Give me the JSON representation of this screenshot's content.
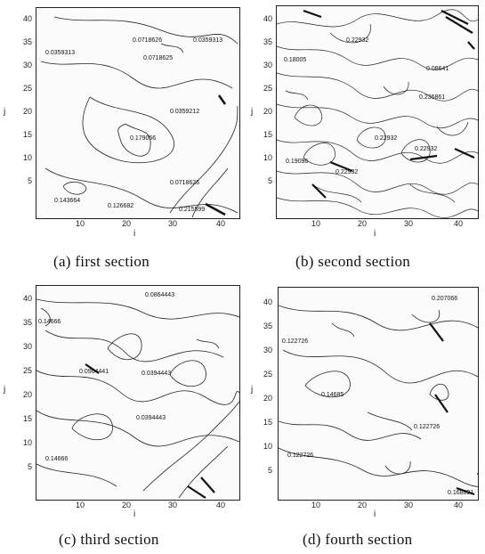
{
  "panels": [
    {
      "id": "a",
      "caption": "(a) first section",
      "x_label": "i",
      "y_label": "j",
      "x_ticks": [
        "10",
        "20",
        "30",
        "40"
      ],
      "y_ticks": [
        "40",
        "35",
        "30",
        "25",
        "20",
        "15",
        "10",
        "5"
      ],
      "contour_labels": [
        "0.0718626",
        "0.0359313",
        "0.0718625",
        "0.0359313",
        "0.0359212",
        "0.179066",
        "0.0718626",
        "0.215599",
        "0.143664",
        "0.126682"
      ]
    },
    {
      "id": "b",
      "caption": "(b) second section",
      "x_label": "i",
      "y_label": "j",
      "x_ticks": [
        "10",
        "20",
        "30",
        "40"
      ],
      "y_ticks": [
        "40",
        "35",
        "30",
        "25",
        "20",
        "15",
        "10",
        "5"
      ],
      "contour_labels": [
        "0.22932",
        "0.08641",
        "0.236861",
        "0.22932",
        "0.22932",
        "0.18005",
        "0.19096",
        "0.22932"
      ]
    },
    {
      "id": "c",
      "caption": "(c) third section",
      "x_label": "i",
      "y_label": "j",
      "x_ticks": [
        "10",
        "20",
        "30",
        "40"
      ],
      "y_ticks": [
        "40",
        "35",
        "30",
        "25",
        "20",
        "15",
        "10",
        "5"
      ],
      "contour_labels": [
        "0.0864443",
        "0.14666",
        "0.0964441",
        "0.0394443",
        "0.0394443",
        "0.14666"
      ]
    },
    {
      "id": "d",
      "caption": "(d) fourth section",
      "x_label": "i",
      "y_label": "j",
      "x_ticks": [
        "10",
        "20",
        "30",
        "40"
      ],
      "y_ticks": [
        "40",
        "35",
        "30",
        "25",
        "20",
        "15",
        "10",
        "5"
      ],
      "contour_labels": [
        "0.207066",
        "0.122726",
        "0.14685",
        "0.122726",
        "0.122726",
        "0.168891"
      ]
    }
  ]
}
